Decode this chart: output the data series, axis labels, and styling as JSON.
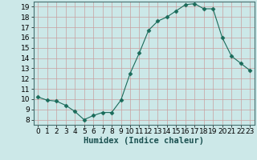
{
  "x": [
    0,
    1,
    2,
    3,
    4,
    5,
    6,
    7,
    8,
    9,
    10,
    11,
    12,
    13,
    14,
    15,
    16,
    17,
    18,
    19,
    20,
    21,
    22,
    23
  ],
  "y": [
    10.2,
    9.9,
    9.8,
    9.4,
    8.8,
    8.0,
    8.4,
    8.7,
    8.7,
    9.9,
    12.5,
    14.5,
    16.7,
    17.6,
    18.0,
    18.6,
    19.2,
    19.3,
    18.8,
    18.8,
    16.0,
    14.2,
    13.5,
    12.8
  ],
  "line_color": "#1a6b5a",
  "marker": "D",
  "marker_size": 2.5,
  "bg_color": "#cce8e8",
  "grid_color_major": "#c8a0a0",
  "grid_color_minor": "#b8d4d4",
  "xlabel": "Humidex (Indice chaleur)",
  "xlim": [
    -0.5,
    23.5
  ],
  "ylim": [
    7.5,
    19.5
  ],
  "yticks": [
    8,
    9,
    10,
    11,
    12,
    13,
    14,
    15,
    16,
    17,
    18,
    19
  ],
  "xticks": [
    0,
    1,
    2,
    3,
    4,
    5,
    6,
    7,
    8,
    9,
    10,
    11,
    12,
    13,
    14,
    15,
    16,
    17,
    18,
    19,
    20,
    21,
    22,
    23
  ],
  "xlabel_fontsize": 7.5,
  "tick_fontsize": 6.5
}
